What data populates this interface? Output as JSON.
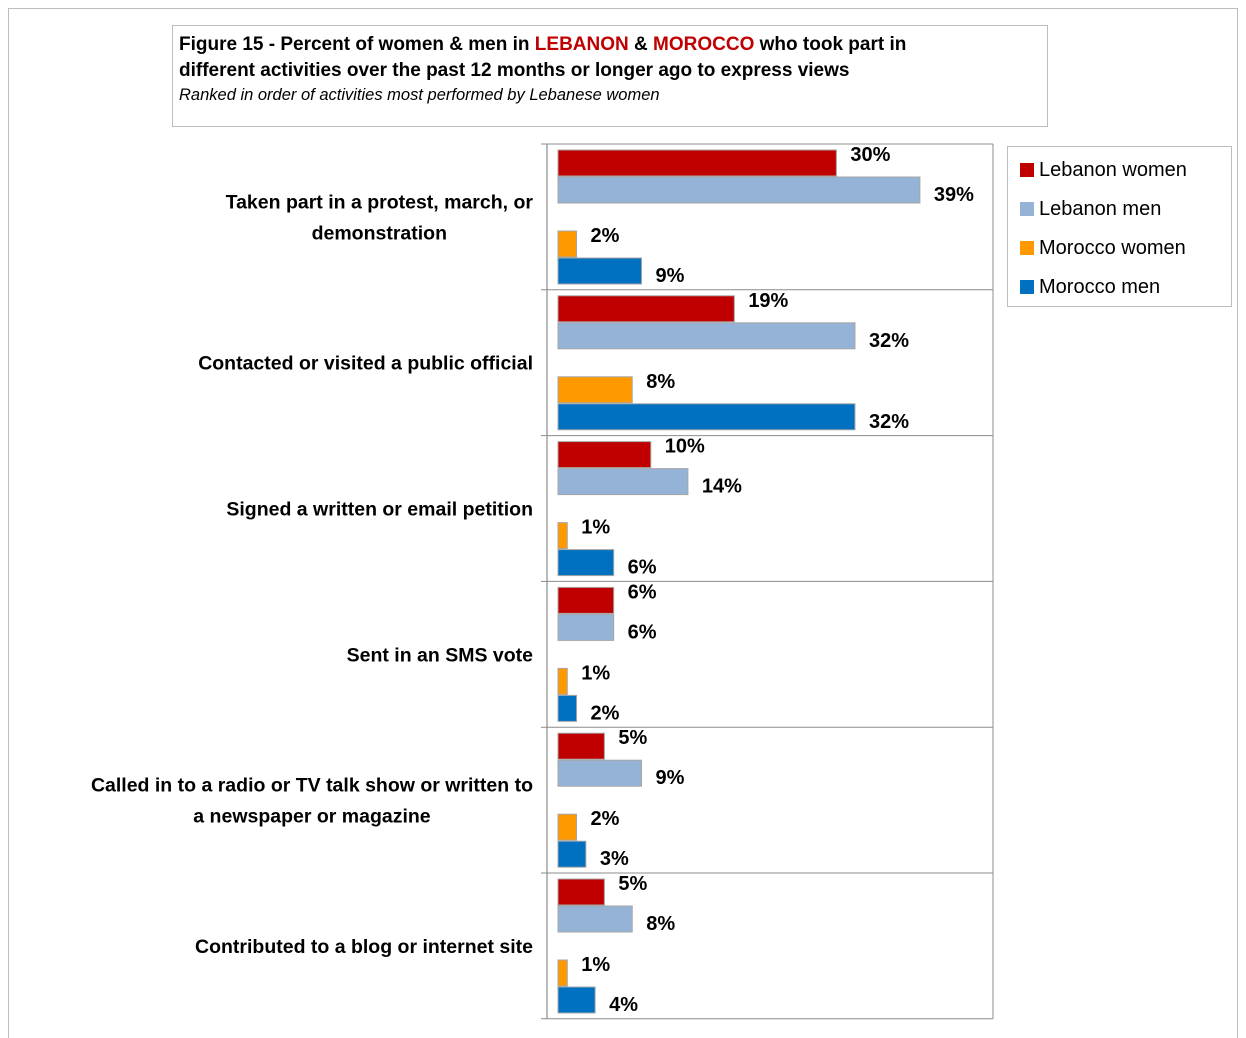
{
  "title": {
    "part1": "Figure 15 - Percent of women & men in ",
    "country1": "LEBANON",
    "part2": " & ",
    "country2": "MOROCCO",
    "part3": " who took part in",
    "line2": "different activities over the past 12 months or longer ago to express views",
    "subtitle": "Ranked in order of activities most performed by Lebanese women"
  },
  "colors": {
    "lebanon_women": "#c00000",
    "lebanon_men": "#95b3d7",
    "morocco_women": "#ff9900",
    "morocco_men": "#0070c0",
    "title_highlight": "#c00000"
  },
  "chart_data": {
    "type": "bar",
    "orientation": "horizontal",
    "categories": [
      [
        "Taken part in a protest, march, or",
        "demonstration"
      ],
      [
        "Contacted or visited a public official"
      ],
      [
        "Signed a written or email petition"
      ],
      [
        "Sent in an SMS vote"
      ],
      [
        "Called in to a radio or TV talk show or  written to",
        "a newspaper or magazine"
      ],
      [
        "Contributed to a blog or internet site"
      ]
    ],
    "series": [
      {
        "name": "Lebanon women",
        "values": [
          30,
          19,
          10,
          6,
          5,
          5
        ],
        "labels": [
          "30%",
          "19%",
          "10%",
          "6%",
          "5%",
          "5%"
        ]
      },
      {
        "name": "Lebanon men",
        "values": [
          39,
          32,
          14,
          6,
          9,
          8
        ],
        "labels": [
          "39%",
          "32%",
          "14%",
          "6%",
          "9%",
          "8%"
        ]
      },
      {
        "name": "Morocco women",
        "values": [
          2,
          8,
          1,
          1,
          2,
          1
        ],
        "labels": [
          "2%",
          "8%",
          "1%",
          "1%",
          "2%",
          "1%"
        ]
      },
      {
        "name": "Morocco men",
        "values": [
          9,
          32,
          6,
          2,
          3,
          4
        ],
        "labels": [
          "9%",
          "32%",
          "6%",
          "2%",
          "3%",
          "4%"
        ]
      }
    ],
    "xlim": [
      0,
      48
    ],
    "grid": false,
    "legend_position": "top-right"
  }
}
